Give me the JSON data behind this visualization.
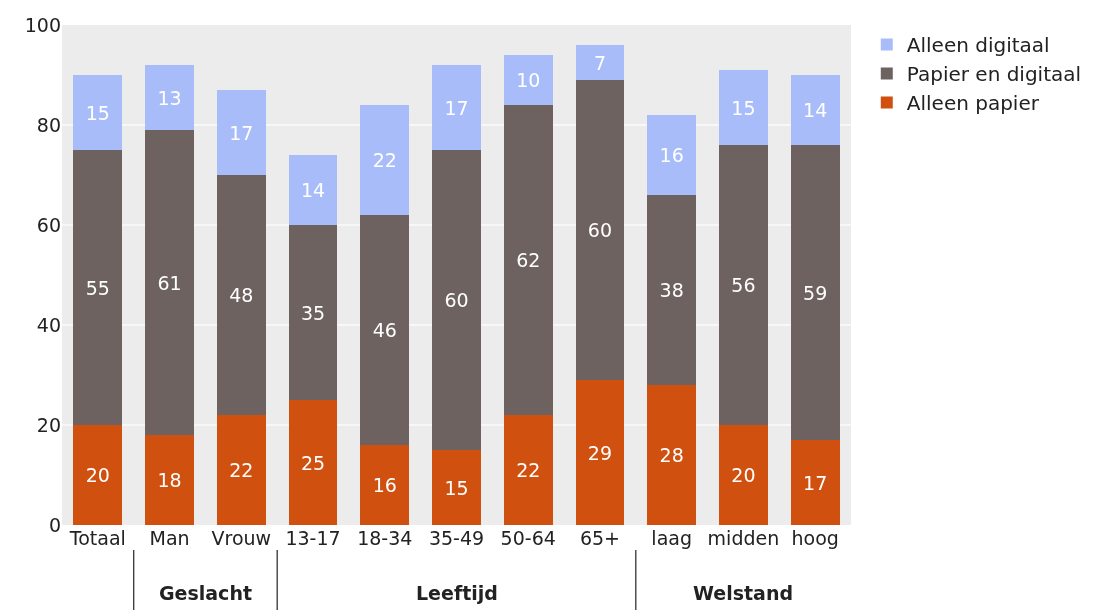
{
  "chart_data": {
    "type": "bar",
    "stacked": true,
    "categories": [
      "Totaal",
      "Man",
      "Vrouw",
      "13-17",
      "18-34",
      "35-49",
      "50-64",
      "65+",
      "laag",
      "midden",
      "hoog"
    ],
    "series": [
      {
        "name": "Alleen papier",
        "color": "#d05010",
        "values": [
          20,
          18,
          22,
          25,
          16,
          15,
          22,
          29,
          28,
          20,
          17
        ]
      },
      {
        "name": "Papier en digitaal",
        "color": "#6e6260",
        "values": [
          55,
          61,
          48,
          35,
          46,
          60,
          62,
          60,
          38,
          56,
          59
        ]
      },
      {
        "name": "Alleen digitaal",
        "color": "#a9bcfa",
        "values": [
          15,
          13,
          17,
          14,
          22,
          17,
          10,
          7,
          16,
          15,
          14
        ]
      }
    ],
    "ylim": [
      0,
      100
    ],
    "yticks": [
      0,
      20,
      40,
      60,
      80,
      100
    ],
    "grid": "y",
    "legend": "top right",
    "data_labels": true,
    "annotations": [
      "Geslacht",
      "Leeftijd",
      "Welstand"
    ]
  }
}
